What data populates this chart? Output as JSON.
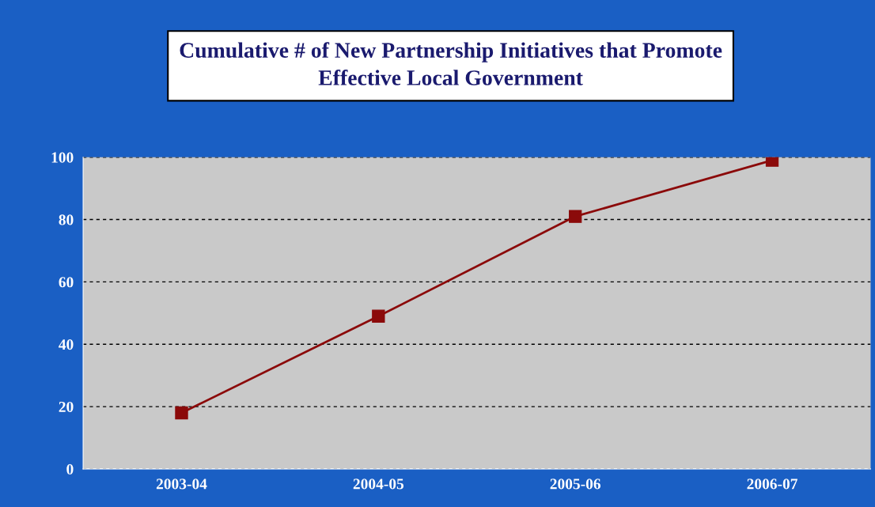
{
  "chart_data": {
    "type": "line",
    "title": "Cumulative # of New Partnership Initiatives that Promote\nEffective Local Government",
    "categories": [
      "2003-04",
      "2004-05",
      "2005-06",
      "2006-07"
    ],
    "series": [
      {
        "color": "#8b0a0a",
        "values": [
          18,
          49,
          81,
          99
        ]
      }
    ],
    "ylim": [
      0,
      100
    ],
    "yticks": [
      0,
      20,
      40,
      60,
      80,
      100
    ],
    "grid": "y",
    "marker": "square",
    "line_style": "solid",
    "legend": false
  }
}
